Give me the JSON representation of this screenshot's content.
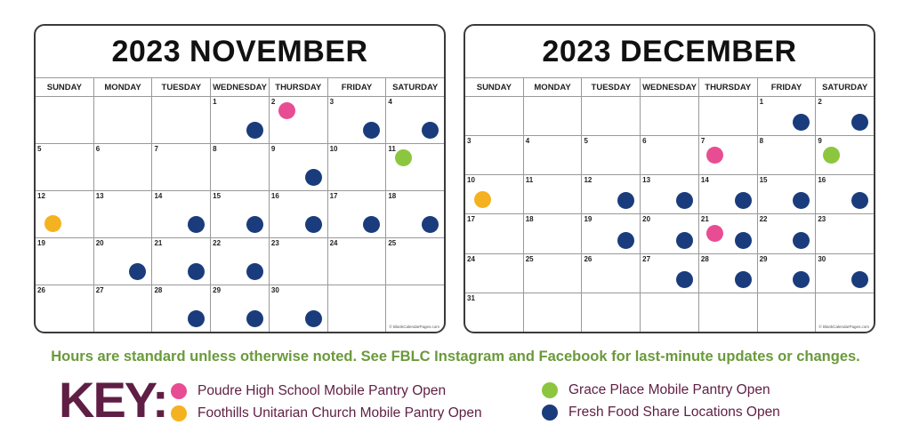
{
  "colors": {
    "pink": "#e84d94",
    "orange": "#f5b220",
    "green": "#8cc63f",
    "blue": "#1a3c7c"
  },
  "day_names": [
    "SUNDAY",
    "MONDAY",
    "TUESDAY",
    "WEDNESDAY",
    "THURSDAY",
    "FRIDAY",
    "SATURDAY"
  ],
  "calendars": [
    {
      "id": "nov",
      "title": "2023 NOVEMBER",
      "credit": "© BlankCalendarPages.com",
      "weeks": [
        [
          {
            "d": ""
          },
          {
            "d": ""
          },
          {
            "d": ""
          },
          {
            "d": "1",
            "dot": "blue"
          },
          {
            "d": "2",
            "dot": "pink",
            "top": true
          },
          {
            "d": "3",
            "dot": "blue"
          },
          {
            "d": "4",
            "dot": "blue"
          }
        ],
        [
          {
            "d": "5"
          },
          {
            "d": "6"
          },
          {
            "d": "7"
          },
          {
            "d": "8"
          },
          {
            "d": "9",
            "dot": "blue"
          },
          {
            "d": "10"
          },
          {
            "d": "11",
            "dot": "green",
            "top": true
          }
        ],
        [
          {
            "d": "12",
            "dot": "orange",
            "left": true
          },
          {
            "d": "13"
          },
          {
            "d": "14",
            "dot": "blue"
          },
          {
            "d": "15",
            "dot": "blue"
          },
          {
            "d": "16",
            "dot": "blue"
          },
          {
            "d": "17",
            "dot": "blue"
          },
          {
            "d": "18",
            "dot": "blue"
          }
        ],
        [
          {
            "d": "19"
          },
          {
            "d": "20",
            "dot": "blue"
          },
          {
            "d": "21",
            "dot": "blue"
          },
          {
            "d": "22",
            "dot": "blue"
          },
          {
            "d": "23"
          },
          {
            "d": "24"
          },
          {
            "d": "25"
          }
        ],
        [
          {
            "d": "26"
          },
          {
            "d": "27"
          },
          {
            "d": "28",
            "dot": "blue"
          },
          {
            "d": "29",
            "dot": "blue"
          },
          {
            "d": "30",
            "dot": "blue"
          },
          {
            "d": ""
          },
          {
            "d": ""
          }
        ]
      ]
    },
    {
      "id": "dec",
      "title": "2023 DECEMBER",
      "credit": "© BlankCalendarPages.com",
      "weeks": [
        [
          {
            "d": ""
          },
          {
            "d": ""
          },
          {
            "d": ""
          },
          {
            "d": ""
          },
          {
            "d": ""
          },
          {
            "d": "1",
            "dot": "blue"
          },
          {
            "d": "2",
            "dot": "blue"
          }
        ],
        [
          {
            "d": "3"
          },
          {
            "d": "4"
          },
          {
            "d": "5"
          },
          {
            "d": "6"
          },
          {
            "d": "7",
            "dot": "pink"
          },
          {
            "d": "8"
          },
          {
            "d": "9",
            "dot": "green"
          }
        ],
        [
          {
            "d": "10",
            "dot": "orange",
            "left": true
          },
          {
            "d": "11"
          },
          {
            "d": "12",
            "dot": "blue"
          },
          {
            "d": "13",
            "dot": "blue"
          },
          {
            "d": "14",
            "dot": "blue"
          },
          {
            "d": "15",
            "dot": "blue"
          },
          {
            "d": "16",
            "dot": "blue"
          }
        ],
        [
          {
            "d": "17"
          },
          {
            "d": "18"
          },
          {
            "d": "19",
            "dot": "blue"
          },
          {
            "d": "20",
            "dot": "blue"
          },
          {
            "d": "21",
            "dots": [
              "pink",
              "blue"
            ]
          },
          {
            "d": "22",
            "dot": "blue"
          },
          {
            "d": "23"
          }
        ],
        [
          {
            "d": "24"
          },
          {
            "d": "25"
          },
          {
            "d": "26"
          },
          {
            "d": "27",
            "dot": "blue"
          },
          {
            "d": "28",
            "dot": "blue"
          },
          {
            "d": "29",
            "dot": "blue"
          },
          {
            "d": "30",
            "dot": "blue"
          }
        ],
        [
          {
            "d": "31"
          },
          {
            "d": ""
          },
          {
            "d": ""
          },
          {
            "d": ""
          },
          {
            "d": ""
          },
          {
            "d": ""
          },
          {
            "d": ""
          }
        ]
      ]
    }
  ],
  "note": "Hours are standard unless otherwise noted. See FBLC Instagram and Facebook for last-minute updates or changes.",
  "key": {
    "title": "KEY:",
    "items": [
      {
        "color": "pink",
        "label": "Poudre High School Mobile Pantry Open"
      },
      {
        "color": "orange",
        "label": "Foothills Unitarian Church Mobile Pantry Open"
      },
      {
        "color": "green",
        "label": "Grace Place Mobile Pantry Open"
      },
      {
        "color": "blue",
        "label": "Fresh Food Share Locations Open"
      }
    ]
  }
}
